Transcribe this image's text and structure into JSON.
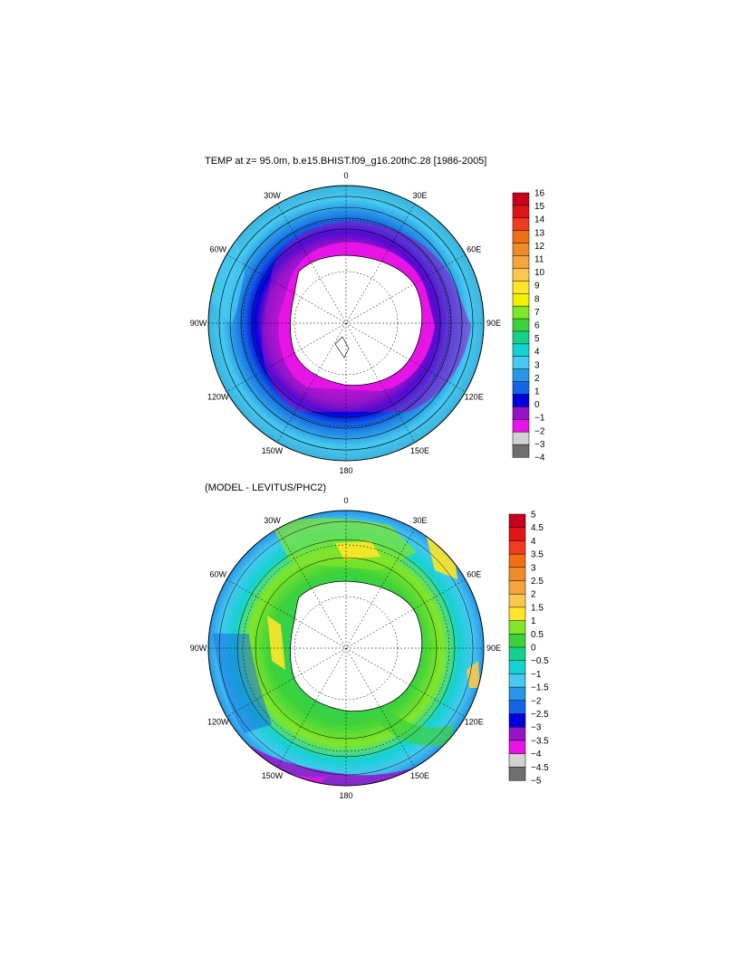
{
  "panels": [
    {
      "id": "top",
      "title": "TEMP at z=  95.0m, b.e15.BHIST.f09_g16.20thC.28 [1986-2005]",
      "lon_labels": [
        "0",
        "30E",
        "60E",
        "90E",
        "120E",
        "150E",
        "180",
        "150W",
        "120W",
        "90W",
        "60W",
        "30W"
      ],
      "colorbar": {
        "labels": [
          "16",
          "15",
          "14",
          "13",
          "12",
          "11",
          "10",
          "9",
          "8",
          "7",
          "6",
          "5",
          "4",
          "3",
          "2",
          "1",
          "0",
          "−1",
          "−2",
          "−3",
          "−4"
        ],
        "colors": [
          "#c8001e",
          "#e01414",
          "#f03c1e",
          "#f06e14",
          "#f08c28",
          "#f5a53c",
          "#fac850",
          "#ffe628",
          "#f0f000",
          "#82e628",
          "#3cd23c",
          "#14d28c",
          "#14d2d2",
          "#46c8f0",
          "#2896e6",
          "#1464e6",
          "#0000dc",
          "#9614c8",
          "#e614e6",
          "#d2d2d2",
          "#6e6e6e"
        ]
      }
    },
    {
      "id": "bottom",
      "title": "(MODEL - LEVITUS/PHC2)",
      "lon_labels": [
        "0",
        "30E",
        "60E",
        "90E",
        "120E",
        "150E",
        "180",
        "150W",
        "120W",
        "90W",
        "60W",
        "30W"
      ],
      "colorbar": {
        "labels": [
          "5",
          "4.5",
          "4",
          "3.5",
          "3",
          "2.5",
          "2",
          "1.5",
          "1",
          "0.5",
          "0",
          "−0.5",
          "−1",
          "−1.5",
          "−2",
          "−2.5",
          "−3",
          "−3.5",
          "−4",
          "−4.5",
          "−5"
        ],
        "colors": [
          "#c8001e",
          "#e01414",
          "#f03c1e",
          "#f06e14",
          "#f08c28",
          "#f5a53c",
          "#fac850",
          "#ffe628",
          "#82e628",
          "#3cd23c",
          "#14d28c",
          "#14d2d2",
          "#46c8f0",
          "#2896e6",
          "#1464e6",
          "#0000dc",
          "#9614c8",
          "#e614e6",
          "#d2d2d2",
          "#6e6e6e"
        ]
      }
    }
  ]
}
